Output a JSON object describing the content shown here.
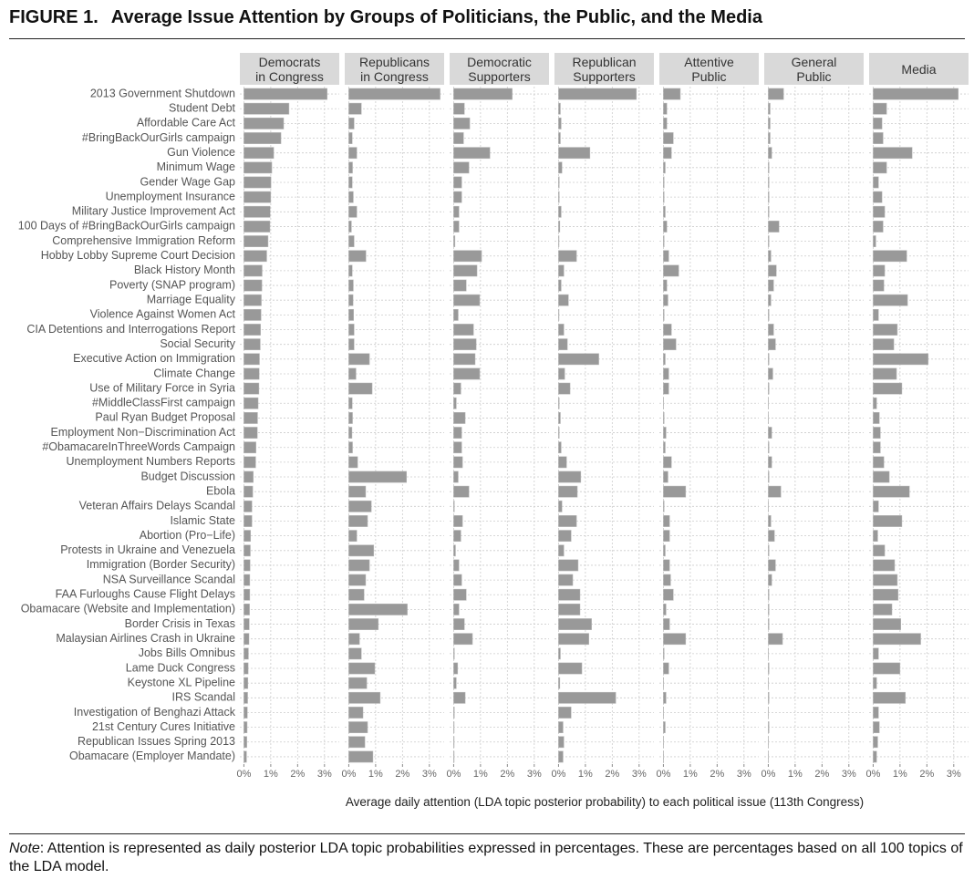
{
  "chart_data": {
    "type": "bar",
    "orientation": "horizontal",
    "figure_label": "FIGURE 1.",
    "title": "Average Issue Attention by Groups of Politicians, the Public, and the Media",
    "x_label": "Average daily attention (LDA topic posterior probability) to each political issue (113th Congress)",
    "note_label": "Note",
    "note": ": Attention is represented as daily posterior LDA topic probabilities expressed in percentages. These are percentages based on all 100 topics of the LDA model.",
    "color": "#999999",
    "grid": true,
    "xlim": [
      -0.15,
      3.55
    ],
    "xticks": [
      {
        "value": 0,
        "label": "0%"
      },
      {
        "value": 1,
        "label": "1%"
      },
      {
        "value": 2,
        "label": "2%"
      },
      {
        "value": 3,
        "label": "3%"
      }
    ],
    "categories": [
      "2013 Government Shutdown",
      "Student Debt",
      "Affordable Care Act",
      "#BringBackOurGirls campaign",
      "Gun Violence",
      "Minimum Wage",
      "Gender Wage Gap",
      "Unemployment Insurance",
      "Military Justice Improvement Act",
      "100 Days of #BringBackOurGirls campaign",
      "Comprehensive Immigration Reform",
      "Hobby Lobby Supreme Court Decision",
      "Black History Month",
      "Poverty (SNAP program)",
      "Marriage Equality",
      "Violence Against Women Act",
      "CIA Detentions and Interrogations Report",
      "Social Security",
      "Executive Action on Immigration",
      "Climate Change",
      "Use of Military Force in Syria",
      "#MiddleClassFirst campaign",
      "Paul Ryan Budget Proposal",
      "Employment Non−Discrimination Act",
      "#ObamacareInThreeWords Campaign",
      "Unemployment Numbers Reports",
      "Budget Discussion",
      "Ebola",
      "Veteran Affairs Delays Scandal",
      "Islamic State",
      "Abortion (Pro−Life)",
      "Protests in Ukraine and Venezuela",
      "Immigration (Border Security)",
      "NSA Surveillance Scandal",
      "FAA Furloughs Cause Flight Delays",
      "Obamacare (Website and Implementation)",
      "Border Crisis in Texas",
      "Malaysian Airlines Crash in Ukraine",
      "Jobs Bills Omnibus",
      "Lame Duck Congress",
      "Keystone XL Pipeline",
      "IRS Scandal",
      "Investigation of Benghazi Attack",
      "21st Century Cures Initiative",
      "Republican Issues Spring 2013",
      "Obamacare (Employer Mandate)"
    ],
    "series": [
      {
        "name": "Democrats\nin Congress",
        "values": [
          3.1,
          1.68,
          1.48,
          1.38,
          1.11,
          1.04,
          1.01,
          1.0,
          0.98,
          0.97,
          0.9,
          0.85,
          0.68,
          0.67,
          0.65,
          0.64,
          0.62,
          0.61,
          0.58,
          0.57,
          0.56,
          0.53,
          0.51,
          0.5,
          0.45,
          0.44,
          0.35,
          0.33,
          0.3,
          0.3,
          0.25,
          0.24,
          0.23,
          0.22,
          0.22,
          0.21,
          0.2,
          0.19,
          0.17,
          0.16,
          0.15,
          0.14,
          0.13,
          0.12,
          0.11,
          0.1
        ]
      },
      {
        "name": "Republicans\nin Congress",
        "values": [
          3.4,
          0.47,
          0.2,
          0.13,
          0.3,
          0.14,
          0.13,
          0.17,
          0.3,
          0.1,
          0.2,
          0.64,
          0.13,
          0.17,
          0.16,
          0.18,
          0.2,
          0.2,
          0.77,
          0.27,
          0.87,
          0.13,
          0.14,
          0.12,
          0.14,
          0.33,
          2.15,
          0.63,
          0.84,
          0.7,
          0.3,
          0.93,
          0.77,
          0.63,
          0.57,
          2.18,
          1.1,
          0.4,
          0.47,
          0.97,
          0.67,
          1.17,
          0.53,
          0.7,
          0.6,
          0.9
        ]
      },
      {
        "name": "Democratic\nSupporters",
        "values": [
          2.18,
          0.4,
          0.6,
          0.37,
          1.35,
          0.57,
          0.3,
          0.3,
          0.2,
          0.2,
          0.05,
          1.04,
          0.87,
          0.47,
          0.97,
          0.17,
          0.74,
          0.84,
          0.8,
          0.97,
          0.27,
          0.1,
          0.43,
          0.3,
          0.3,
          0.33,
          0.17,
          0.57,
          0.03,
          0.33,
          0.27,
          0.07,
          0.2,
          0.3,
          0.47,
          0.2,
          0.4,
          0.7,
          0.03,
          0.15,
          0.1,
          0.43,
          0.03,
          0.02,
          0.02,
          0.02
        ]
      },
      {
        "name": "Republican\nSupporters",
        "values": [
          2.9,
          0.07,
          0.1,
          0.07,
          1.17,
          0.13,
          0.03,
          0.03,
          0.1,
          0.05,
          0.02,
          0.67,
          0.2,
          0.1,
          0.37,
          0.02,
          0.2,
          0.33,
          1.5,
          0.23,
          0.43,
          0.03,
          0.07,
          0.03,
          0.1,
          0.3,
          0.83,
          0.7,
          0.13,
          0.67,
          0.47,
          0.2,
          0.73,
          0.53,
          0.8,
          0.8,
          1.23,
          1.13,
          0.07,
          0.87,
          0.05,
          2.13,
          0.47,
          0.17,
          0.2,
          0.17
        ]
      },
      {
        "name": "Attentive\nPublic",
        "values": [
          0.63,
          0.13,
          0.13,
          0.37,
          0.3,
          0.07,
          0.03,
          0.03,
          0.07,
          0.13,
          0.03,
          0.2,
          0.57,
          0.13,
          0.17,
          0.03,
          0.3,
          0.47,
          0.07,
          0.2,
          0.2,
          0.01,
          0.03,
          0.1,
          0.07,
          0.3,
          0.17,
          0.83,
          0.03,
          0.23,
          0.23,
          0.07,
          0.23,
          0.27,
          0.37,
          0.1,
          0.23,
          0.83,
          0.03,
          0.2,
          0.01,
          0.1,
          0.01,
          0.07,
          0.01,
          0.01
        ]
      },
      {
        "name": "General\nPublic",
        "values": [
          0.57,
          0.07,
          0.07,
          0.07,
          0.13,
          0.03,
          0.03,
          0.03,
          0.03,
          0.4,
          0.03,
          0.1,
          0.3,
          0.2,
          0.1,
          0.03,
          0.2,
          0.27,
          0.03,
          0.17,
          0.03,
          0.01,
          0.01,
          0.13,
          0.03,
          0.13,
          0.03,
          0.47,
          0.01,
          0.1,
          0.23,
          0.03,
          0.27,
          0.13,
          0.03,
          0.03,
          0.03,
          0.53,
          0.01,
          0.03,
          0.01,
          0.03,
          0.01,
          0.03,
          0.01,
          0.01
        ]
      },
      {
        "name": "Media",
        "values": [
          3.17,
          0.5,
          0.33,
          0.37,
          1.45,
          0.5,
          0.2,
          0.33,
          0.43,
          0.37,
          0.1,
          1.25,
          0.43,
          0.4,
          1.28,
          0.2,
          0.9,
          0.77,
          2.05,
          0.87,
          1.07,
          0.13,
          0.23,
          0.27,
          0.27,
          0.4,
          0.6,
          1.35,
          0.2,
          1.07,
          0.17,
          0.43,
          0.8,
          0.9,
          0.93,
          0.7,
          1.03,
          1.77,
          0.2,
          1.0,
          0.13,
          1.2,
          0.2,
          0.23,
          0.17,
          0.13
        ]
      }
    ]
  }
}
